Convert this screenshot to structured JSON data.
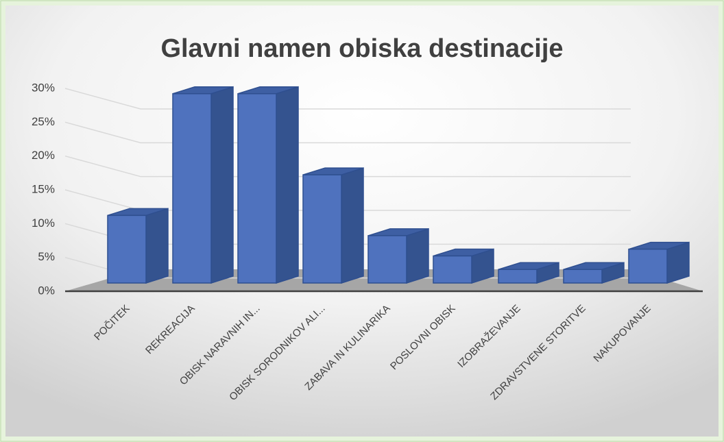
{
  "chart_data": {
    "type": "bar3d",
    "title": "Glavni namen obiska destinacije",
    "categories": [
      "POČITEK",
      "REKREACIJA",
      "OBISK NARAVNIH IN...",
      "OBISK SORODNIKOV ALI...",
      "ZABAVA IN KULINARIKA",
      "POSLOVNI OBISK",
      "IZOBRAŽEVANJE",
      "ZDRAVSTVENE STORITVE",
      "NAKUPOVANJE"
    ],
    "values": [
      10,
      28,
      28,
      16,
      7,
      4,
      2,
      2,
      5
    ],
    "color": "#4f72be",
    "ylim": [
      0,
      30
    ],
    "yticks": [
      {
        "value": 0,
        "label": "0%"
      },
      {
        "value": 5,
        "label": "5%"
      },
      {
        "value": 10,
        "label": "10%"
      },
      {
        "value": 15,
        "label": "15%"
      },
      {
        "value": 20,
        "label": "20%"
      },
      {
        "value": 25,
        "label": "25%"
      },
      {
        "value": 30,
        "label": "30%"
      }
    ],
    "grid": true
  }
}
